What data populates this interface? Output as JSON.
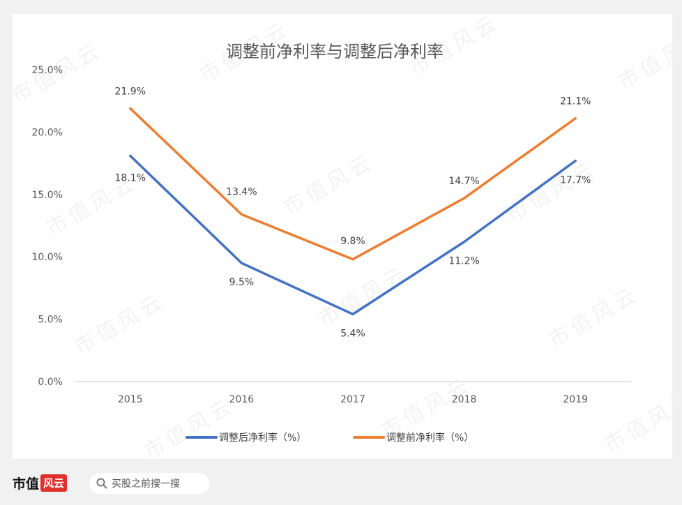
{
  "chart_data": {
    "type": "line",
    "title": "调整前净利率与调整后净利率",
    "categories": [
      "2015",
      "2016",
      "2017",
      "2018",
      "2019"
    ],
    "series": [
      {
        "name": "调整后净利率（%）",
        "color": "#4472c4",
        "values": [
          18.1,
          9.5,
          5.4,
          11.2,
          17.7
        ],
        "labels": [
          "18.1%",
          "9.5%",
          "5.4%",
          "11.2%",
          "17.7%"
        ]
      },
      {
        "name": "调整前净利率（%）",
        "color": "#ed7d31",
        "values": [
          21.9,
          13.4,
          9.8,
          14.7,
          21.1
        ],
        "labels": [
          "21.9%",
          "13.4%",
          "9.8%",
          "14.7%",
          "21.1%"
        ]
      }
    ],
    "yticks": [
      "0.0%",
      "5.0%",
      "10.0%",
      "15.0%",
      "20.0%",
      "25.0%"
    ],
    "ylim": [
      0,
      25
    ],
    "grid": false,
    "legend_position": "bottom"
  },
  "watermark_text": "市值风云",
  "footer": {
    "brand_text": "市值",
    "brand_seal": "风云",
    "search_placeholder": "买股之前搜一搜",
    "search_icon": "search-icon"
  }
}
